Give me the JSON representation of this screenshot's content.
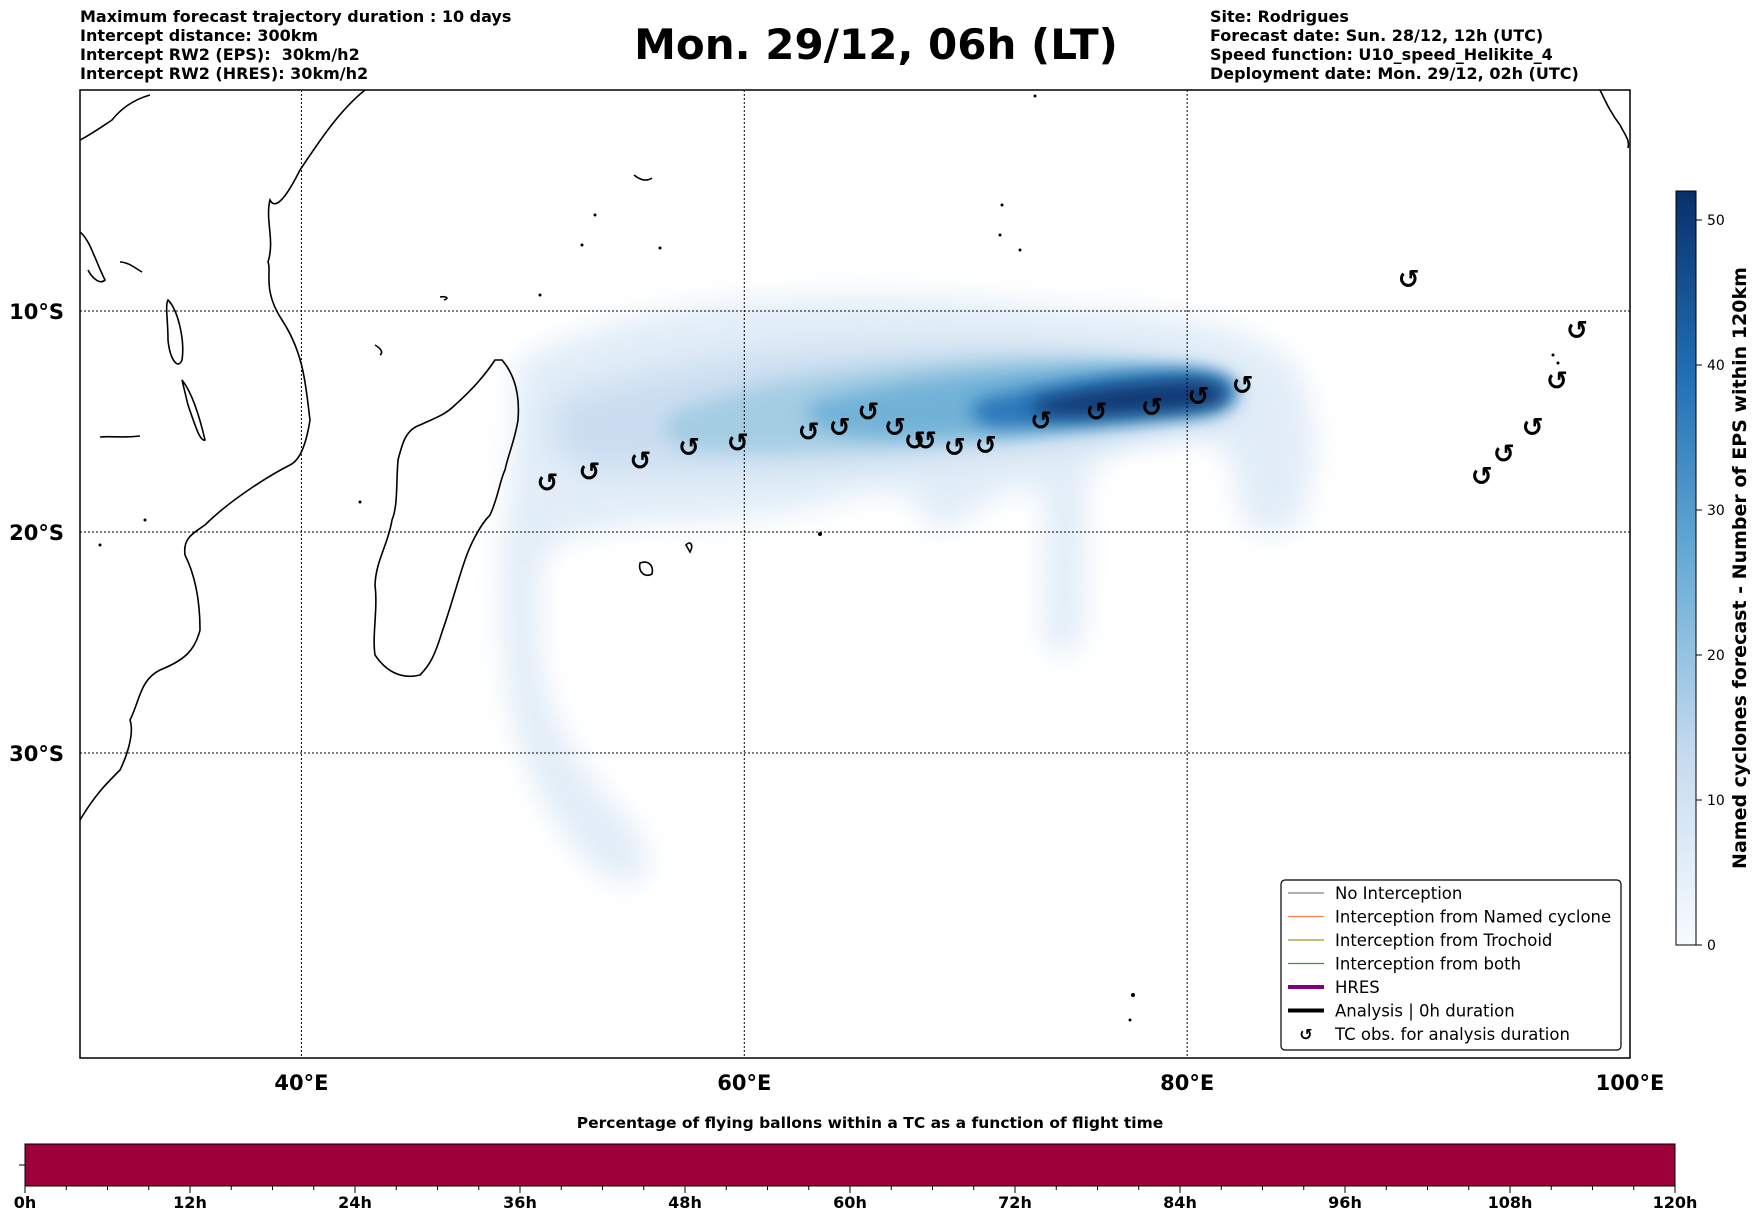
{
  "header": {
    "left": [
      "Maximum forecast trajectory duration : 10 days",
      "Intercept distance: 300km",
      "Intercept RW2 (EPS):  30km/h2",
      "Intercept RW2 (HRES): 30km/h2"
    ],
    "title": "Mon. 29/12, 06h (LT)",
    "right": [
      "Site: Rodrigues",
      "Forecast date: Sun. 28/12, 12h (UTC)",
      "Speed function: U10_speed_Helikite_4",
      "Deployment date: Mon. 29/12, 02h (UTC)"
    ]
  },
  "map": {
    "lon_range": [
      30,
      100
    ],
    "lat_range": [
      -43.8,
      0
    ],
    "lon_ticks": [
      {
        "lon": 40,
        "label": "40°E"
      },
      {
        "lon": 60,
        "label": "60°E"
      },
      {
        "lon": 80,
        "label": "80°E"
      },
      {
        "lon": 100,
        "label": "100°E"
      }
    ],
    "lat_ticks": [
      {
        "lat": -10,
        "label": "10°S"
      },
      {
        "lat": -20,
        "label": "20°S"
      },
      {
        "lat": -30,
        "label": "30°S"
      }
    ],
    "tc_symbol": "↺",
    "tc_observations": [
      [
        51.1,
        -17.8
      ],
      [
        53.0,
        -17.3
      ],
      [
        55.3,
        -16.8
      ],
      [
        57.5,
        -16.2
      ],
      [
        59.7,
        -16.0
      ],
      [
        62.9,
        -15.5
      ],
      [
        64.3,
        -15.3
      ],
      [
        65.6,
        -14.6
      ],
      [
        66.8,
        -15.3
      ],
      [
        67.7,
        -15.9
      ],
      [
        68.2,
        -15.9
      ],
      [
        69.5,
        -16.2
      ],
      [
        70.9,
        -16.1
      ],
      [
        73.4,
        -15.0
      ],
      [
        75.9,
        -14.6
      ],
      [
        78.4,
        -14.4
      ],
      [
        80.5,
        -13.9
      ],
      [
        82.5,
        -13.4
      ],
      [
        90.0,
        -8.6
      ],
      [
        97.6,
        -10.9
      ],
      [
        96.7,
        -13.2
      ],
      [
        95.6,
        -15.3
      ],
      [
        94.3,
        -16.5
      ],
      [
        93.3,
        -17.5
      ]
    ]
  },
  "density_scale": {
    "label": "Named cyclones forecast - Number of EPS within 120km",
    "min": 0,
    "max": 52,
    "ticks": [
      0,
      10,
      20,
      30,
      40,
      50
    ],
    "colors": [
      "#f7fbff",
      "#c6dbef",
      "#6baed6",
      "#2171b5",
      "#08306b"
    ]
  },
  "legend": {
    "entries": [
      {
        "label": "No Interception",
        "color": "#808080",
        "kind": "thin"
      },
      {
        "label": "Interception from Named cyclone",
        "color": "#ff7f50",
        "kind": "thin"
      },
      {
        "label": "Interception from Trochoid",
        "color": "#9a9a2a",
        "kind": "thin"
      },
      {
        "label": "Interception from both",
        "color": "#2ca02c",
        "kind": "thin"
      },
      {
        "label": "HRES",
        "color": "#800080",
        "kind": "thick"
      },
      {
        "label": "Analysis | 0h duration",
        "color": "#000000",
        "kind": "thick"
      },
      {
        "label": "TC obs. for analysis duration",
        "color": "#000000",
        "kind": "symbol"
      }
    ]
  },
  "flight_time_bar": {
    "title": "Percentage of flying ballons within a TC as a function of flight time",
    "color": "#9e003a",
    "ticks": [
      "0h",
      "12h",
      "24h",
      "36h",
      "48h",
      "60h",
      "72h",
      "84h",
      "96h",
      "108h",
      "120h"
    ]
  }
}
